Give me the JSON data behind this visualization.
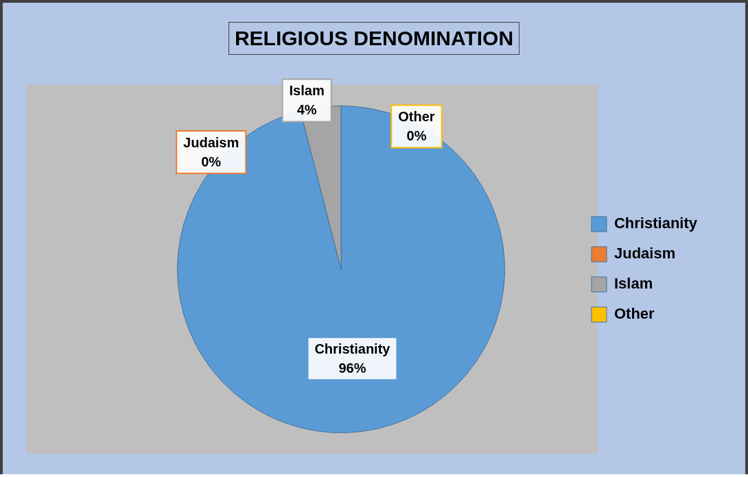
{
  "chart_data": {
    "type": "pie",
    "title": "RELIGIOUS DENOMINATION",
    "categories": [
      "Christianity",
      "Judaism",
      "Islam",
      "Other"
    ],
    "values": [
      96,
      0,
      4,
      0
    ],
    "colors": [
      "#5b9bd5",
      "#ed7d31",
      "#a5a5a5",
      "#ffc000"
    ],
    "value_labels": [
      "96%",
      "0%",
      "4%",
      "0%"
    ],
    "legend": "right"
  }
}
